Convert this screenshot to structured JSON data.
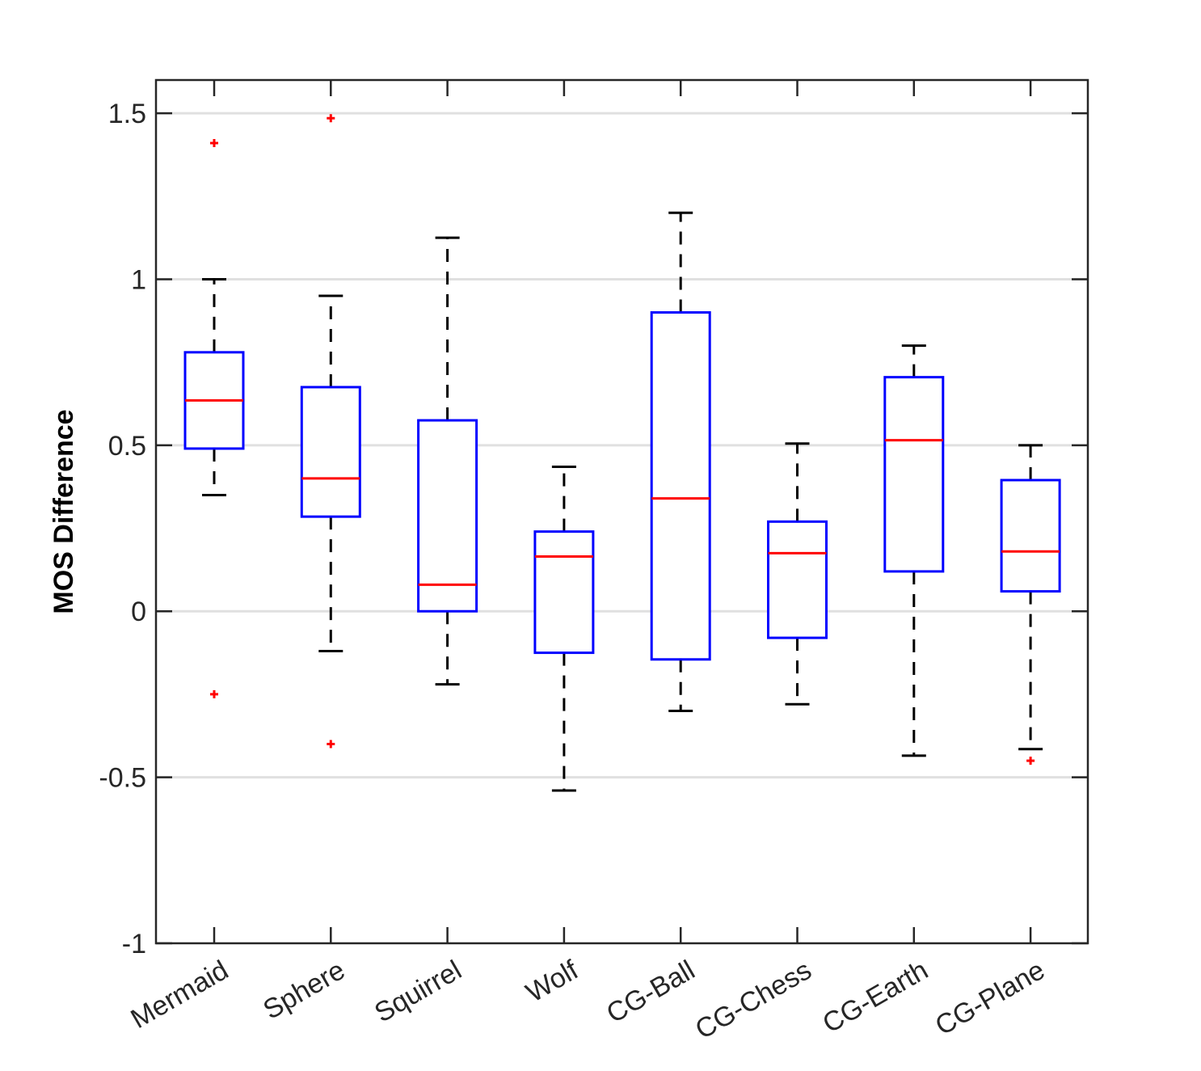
{
  "chart_data": {
    "type": "boxplot",
    "title": "",
    "xlabel": "",
    "ylabel": "MOS Difference",
    "ylim": [
      -1,
      1.6
    ],
    "yticks": [
      -1,
      -0.5,
      0,
      0.5,
      1,
      1.5
    ],
    "ytick_labels": [
      "-1",
      "-0.5",
      "0",
      "0.5",
      "1",
      "1.5"
    ],
    "grid": "horizontal",
    "categories": [
      "Mermaid",
      "Sphere",
      "Squirrel",
      "Wolf",
      "CG-Ball",
      "CG-Chess",
      "CG-Earth",
      "CG-Plane"
    ],
    "boxes": [
      {
        "label": "Mermaid",
        "whisker_low": 0.35,
        "q1": 0.49,
        "median": 0.635,
        "q3": 0.78,
        "whisker_high": 1.0,
        "outliers": [
          1.41,
          -0.25
        ]
      },
      {
        "label": "Sphere",
        "whisker_low": -0.12,
        "q1": 0.285,
        "median": 0.4,
        "q3": 0.675,
        "whisker_high": 0.95,
        "outliers": [
          1.485,
          -0.4
        ]
      },
      {
        "label": "Squirrel",
        "whisker_low": -0.22,
        "q1": 0.0,
        "median": 0.08,
        "q3": 0.575,
        "whisker_high": 1.125,
        "outliers": []
      },
      {
        "label": "Wolf",
        "whisker_low": -0.54,
        "q1": -0.125,
        "median": 0.165,
        "q3": 0.24,
        "whisker_high": 0.435,
        "outliers": []
      },
      {
        "label": "CG-Ball",
        "whisker_low": -0.3,
        "q1": -0.145,
        "median": 0.34,
        "q3": 0.9,
        "whisker_high": 1.2,
        "outliers": []
      },
      {
        "label": "CG-Chess",
        "whisker_low": -0.28,
        "q1": -0.08,
        "median": 0.175,
        "q3": 0.27,
        "whisker_high": 0.505,
        "outliers": []
      },
      {
        "label": "CG-Earth",
        "whisker_low": -0.435,
        "q1": 0.12,
        "median": 0.515,
        "q3": 0.705,
        "whisker_high": 0.8,
        "outliers": []
      },
      {
        "label": "CG-Plane",
        "whisker_low": -0.415,
        "q1": 0.06,
        "median": 0.18,
        "q3": 0.395,
        "whisker_high": 0.5,
        "outliers": [
          -0.45
        ]
      }
    ],
    "colors": {
      "box": "#0000ff",
      "median": "#ff0000",
      "whisker": "#000000",
      "outlier": "#ff0000",
      "grid": "#e0e0e0",
      "axis": "#262626"
    }
  }
}
